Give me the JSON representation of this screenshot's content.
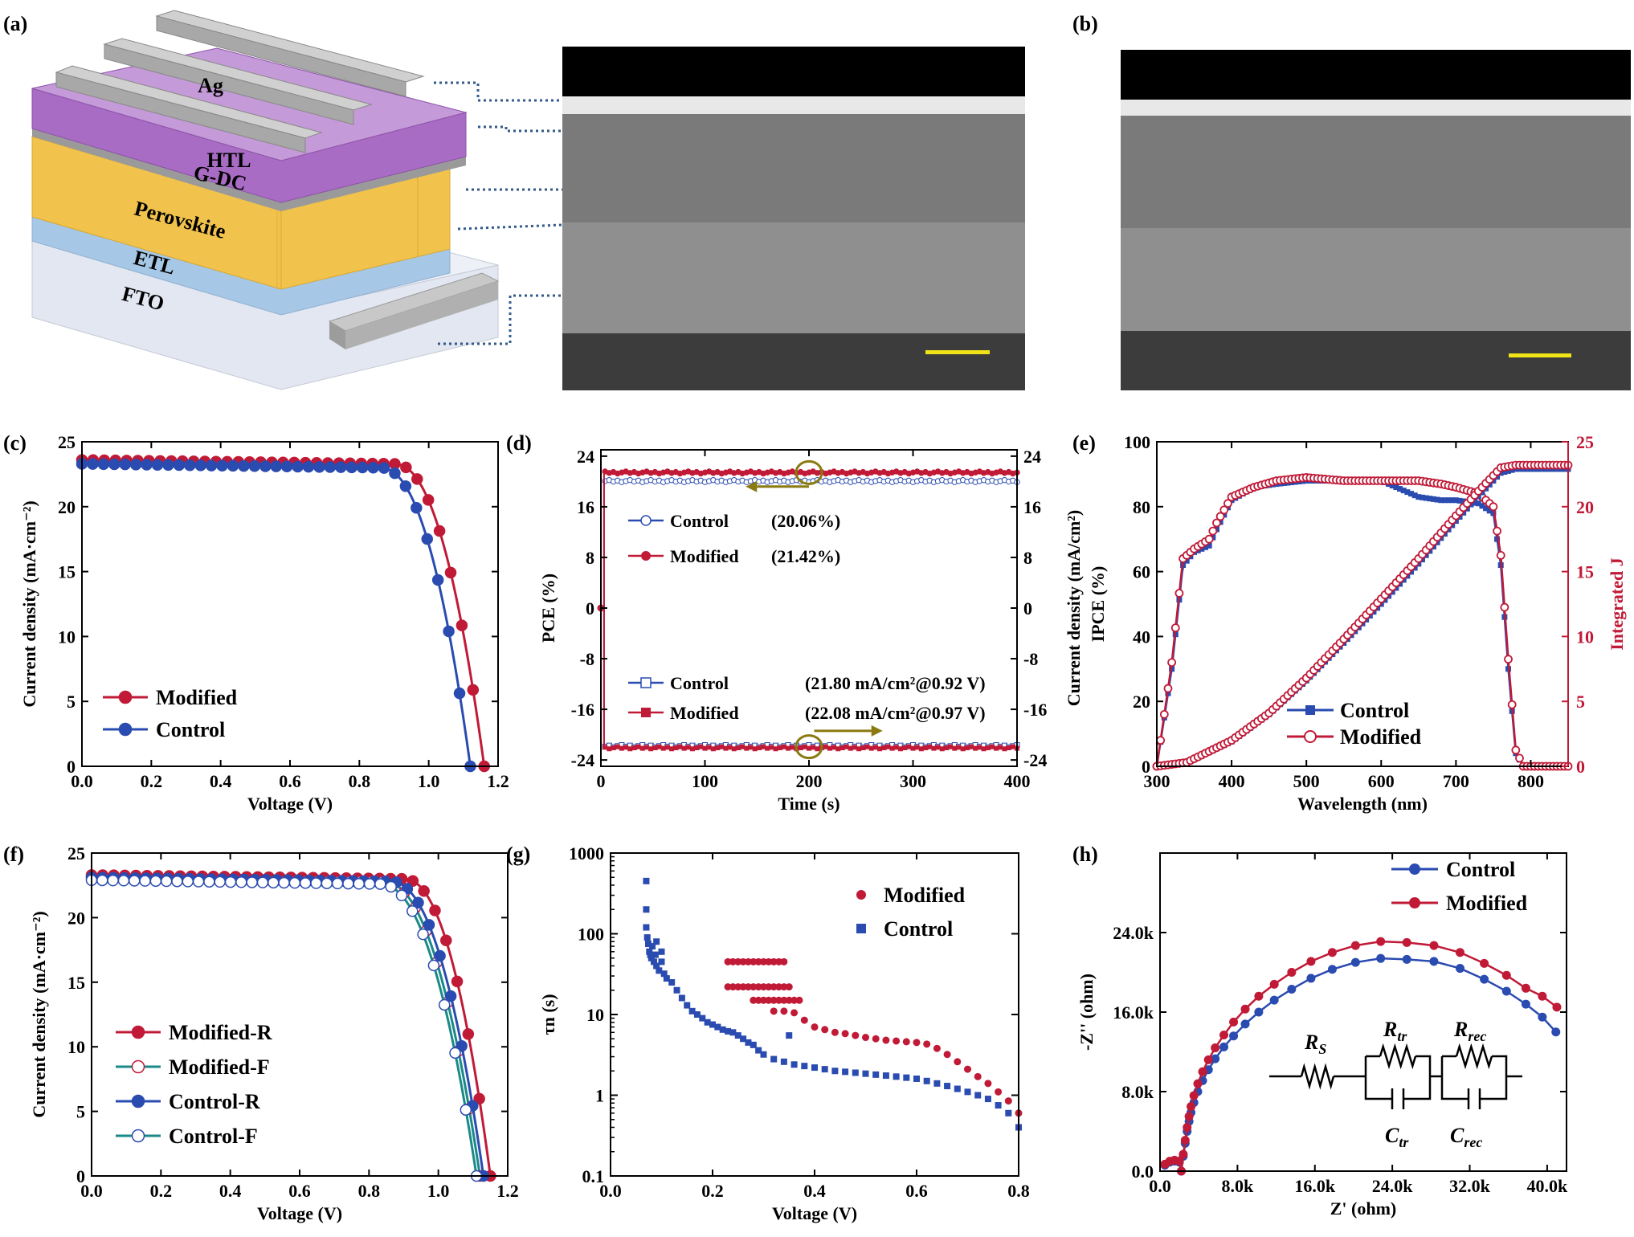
{
  "colors": {
    "control": "#2a4bb0",
    "modified": "#c01a37",
    "teal": "#1a8a88",
    "gold": "#8a7a10",
    "scalebar": "#f0e418",
    "layers": {
      "ag": "#a9a9a9",
      "htl": "#a96cc4",
      "gdc": "#9a9a9a",
      "perovskite": "#f2c34c",
      "etl": "#a6c8e6",
      "fto": "#e6e9f2"
    }
  },
  "panels": {
    "a": {
      "label": "(a)",
      "layers": [
        "Ag",
        "HTL",
        "G-DC",
        "Perovskite",
        "ETL",
        "FTO"
      ]
    },
    "b": {
      "label": "(b)"
    },
    "c": {
      "label": "(c)"
    },
    "d": {
      "label": "(d)"
    },
    "e": {
      "label": "(e)"
    },
    "f": {
      "label": "(f)"
    },
    "g": {
      "label": "(g)"
    },
    "h": {
      "label": "(h)",
      "circuit": {
        "rs": "R",
        "rs_sub": "S",
        "rtr": "R",
        "rtr_sub": "tr",
        "rrec": "R",
        "rrec_sub": "rec",
        "ctr": "C",
        "ctr_sub": "tr",
        "crec": "C",
        "crec_sub": "rec"
      }
    }
  },
  "chart_data": [
    {
      "id": "c",
      "type": "line",
      "xlabel": "Voltage (V)",
      "ylabel": "Current density (mA·cm⁻²)",
      "xlim": [
        0,
        1.2
      ],
      "ylim": [
        0,
        25
      ],
      "xticks": [
        0.0,
        0.2,
        0.4,
        0.6,
        0.8,
        1.0,
        1.2
      ],
      "yticks": [
        0,
        5,
        10,
        15,
        20,
        25
      ],
      "xticklabels": [
        "0.0",
        "0.2",
        "0.4",
        "0.6",
        "0.8",
        "1.0",
        "1.2"
      ],
      "yticklabels": [
        "0",
        "5",
        "10",
        "15",
        "20",
        "25"
      ],
      "legend": [
        {
          "name": "Modified",
          "color": "#c01a37"
        },
        {
          "name": "Control",
          "color": "#2a4bb0"
        }
      ],
      "series": [
        {
          "name": "Modified",
          "color": "#c01a37",
          "jsc": 23.6,
          "voc": 1.16,
          "vk": 0.9,
          "n": 36
        },
        {
          "name": "Control",
          "color": "#2a4bb0",
          "jsc": 23.3,
          "voc": 1.12,
          "vk": 0.86,
          "n": 36
        }
      ]
    },
    {
      "id": "d",
      "type": "line",
      "xlabel": "Time (s)",
      "ylabel": "PCE (%)",
      "y2label": "Current density (mA/cm²)",
      "xlim": [
        0,
        400
      ],
      "ylim": [
        -25,
        25
      ],
      "xticks": [
        0,
        100,
        200,
        300,
        400
      ],
      "yticks": [
        -24,
        -16,
        -8,
        0,
        8,
        16,
        24
      ],
      "xticklabels": [
        "0",
        "100",
        "200",
        "300",
        "400"
      ],
      "yticklabels": [
        "-24",
        "-16",
        "-8",
        "0",
        "8",
        "16",
        "24"
      ],
      "legend": [
        {
          "name": "Control",
          "value": "(20.06%)",
          "color": "#2a4bb0",
          "marker": "circle-open"
        },
        {
          "name": "Modified",
          "value": "(21.42%)",
          "color": "#c01a37",
          "marker": "circle"
        },
        {
          "name": "Control",
          "value": "(21.80 mA/cm²@0.92 V)",
          "color": "#2a4bb0",
          "marker": "square-open"
        },
        {
          "name": "Modified",
          "value": "(22.08 mA/cm²@0.97 V)",
          "color": "#c01a37",
          "marker": "square"
        }
      ],
      "series": [
        {
          "name": "Control PCE",
          "color": "#2a4bb0",
          "level": 20.06
        },
        {
          "name": "Modified PCE",
          "color": "#c01a37",
          "level": 21.42
        },
        {
          "name": "Control J",
          "color": "#2a4bb0",
          "level": -21.8
        },
        {
          "name": "Modified J",
          "color": "#c01a37",
          "level": -22.08
        }
      ]
    },
    {
      "id": "e",
      "type": "line",
      "xlabel": "Wavelength (nm)",
      "ylabel": "IPCE (%)",
      "y2label": "Integrated J",
      "xlim": [
        300,
        850
      ],
      "ylim": [
        0,
        100
      ],
      "y2lim": [
        0,
        25
      ],
      "xticks": [
        300,
        400,
        500,
        600,
        700,
        800
      ],
      "yticks": [
        0,
        20,
        40,
        60,
        80,
        100
      ],
      "y2ticks": [
        0,
        5,
        10,
        15,
        20,
        25
      ],
      "xticklabels": [
        "300",
        "400",
        "500",
        "600",
        "700",
        "800"
      ],
      "yticklabels": [
        "0",
        "20",
        "40",
        "60",
        "80",
        "100"
      ],
      "y2ticklabels": [
        "0",
        "5",
        "10",
        "15",
        "20",
        "25"
      ],
      "legend": [
        {
          "name": "Control",
          "color": "#2a4bb0"
        },
        {
          "name": "Modified",
          "color": "#c01a37"
        }
      ],
      "ipce": {
        "wavelength": [
          300,
          320,
          335,
          350,
          370,
          380,
          400,
          430,
          460,
          500,
          550,
          600,
          650,
          680,
          700,
          730,
          750,
          760,
          770,
          780,
          790,
          850
        ],
        "control": [
          0,
          30,
          62,
          66,
          68,
          73,
          82,
          86,
          87,
          88,
          88,
          88,
          83,
          82,
          82,
          81,
          78,
          62,
          30,
          4,
          0,
          0
        ],
        "modified": [
          0,
          32,
          64,
          67,
          70,
          75,
          83,
          86,
          88,
          89,
          88,
          88,
          88,
          87,
          86,
          84,
          80,
          65,
          33,
          5,
          0,
          0
        ]
      },
      "jsc": {
        "wavelength": [
          300,
          340,
          400,
          450,
          500,
          550,
          600,
          650,
          700,
          730,
          760,
          780,
          850
        ],
        "control": [
          0,
          0.3,
          1.9,
          4.0,
          6.6,
          9.5,
          12.5,
          15.6,
          18.9,
          20.8,
          22.6,
          22.9,
          22.9
        ],
        "modified": [
          0,
          0.3,
          2.0,
          4.1,
          6.8,
          9.8,
          12.9,
          16.0,
          19.3,
          21.2,
          23.0,
          23.2,
          23.2
        ]
      }
    },
    {
      "id": "f",
      "type": "line",
      "xlabel": "Voltage (V)",
      "ylabel": "Current density (mA·cm⁻²)",
      "xlim": [
        0,
        1.2
      ],
      "ylim": [
        0,
        25
      ],
      "xticks": [
        0.0,
        0.2,
        0.4,
        0.6,
        0.8,
        1.0,
        1.2
      ],
      "yticks": [
        0,
        5,
        10,
        15,
        20,
        25
      ],
      "xticklabels": [
        "0.0",
        "0.2",
        "0.4",
        "0.6",
        "0.8",
        "1.0",
        "1.2"
      ],
      "yticklabels": [
        "0",
        "5",
        "10",
        "15",
        "20",
        "25"
      ],
      "legend": [
        {
          "name": "Modified-R",
          "color": "#c01a37",
          "fill": "#c01a37"
        },
        {
          "name": "Modified-F",
          "color": "#1a8a88",
          "fill": "#ffffff",
          "mcolor": "#c01a37"
        },
        {
          "name": "Control-R",
          "color": "#2a4bb0",
          "fill": "#2a4bb0"
        },
        {
          "name": "Control-F",
          "color": "#1a8a88",
          "fill": "#ffffff",
          "mcolor": "#2a4bb0"
        }
      ],
      "series": [
        {
          "name": "Modified-R",
          "color": "#c01a37",
          "mfill": "#c01a37",
          "mstroke": "#c01a37",
          "jsc": 23.3,
          "voc": 1.15,
          "vk": 0.9,
          "n": 36
        },
        {
          "name": "Modified-F",
          "color": "#1a8a88",
          "mfill": "#ffffff",
          "mstroke": "#c01a37",
          "jsc": 23.1,
          "voc": 1.12,
          "vk": 0.84,
          "n": 36
        },
        {
          "name": "Control-R",
          "color": "#2a4bb0",
          "mfill": "#2a4bb0",
          "mstroke": "#2a4bb0",
          "jsc": 23.1,
          "voc": 1.13,
          "vk": 0.86,
          "n": 36
        },
        {
          "name": "Control-F",
          "color": "#1a8a88",
          "mfill": "#ffffff",
          "mstroke": "#2a4bb0",
          "jsc": 22.9,
          "voc": 1.11,
          "vk": 0.83,
          "n": 36
        }
      ]
    },
    {
      "id": "g",
      "type": "scatter",
      "xlabel": "Voltage (V)",
      "ylabel": "τn (s)",
      "xlim": [
        0,
        0.8
      ],
      "ylim": [
        0.1,
        1000
      ],
      "yscale": "log",
      "xticks": [
        0.0,
        0.2,
        0.4,
        0.6,
        0.8
      ],
      "yticks": [
        0.1,
        1,
        10,
        100,
        1000
      ],
      "xticklabels": [
        "0.0",
        "0.2",
        "0.4",
        "0.6",
        "0.8"
      ],
      "yticklabels": [
        "0.1",
        "1",
        "10",
        "100",
        "1000"
      ],
      "legend": [
        {
          "name": "Modified",
          "color": "#c01a37",
          "marker": "circle"
        },
        {
          "name": "Control",
          "color": "#2a4bb0",
          "marker": "square"
        }
      ],
      "series": [
        {
          "name": "Modified",
          "color": "#c01a37",
          "marker": "circle",
          "x": [
            0.23,
            0.24,
            0.25,
            0.26,
            0.27,
            0.28,
            0.29,
            0.3,
            0.31,
            0.32,
            0.33,
            0.34,
            0.23,
            0.24,
            0.25,
            0.26,
            0.27,
            0.28,
            0.29,
            0.3,
            0.31,
            0.32,
            0.33,
            0.34,
            0.35,
            0.28,
            0.29,
            0.3,
            0.31,
            0.32,
            0.33,
            0.34,
            0.35,
            0.36,
            0.37,
            0.32,
            0.34,
            0.36,
            0.38,
            0.4,
            0.42,
            0.44,
            0.46,
            0.48,
            0.5,
            0.52,
            0.54,
            0.56,
            0.58,
            0.6,
            0.62,
            0.64,
            0.66,
            0.68,
            0.7,
            0.72,
            0.74,
            0.76,
            0.78,
            0.8
          ],
          "y": [
            45,
            45,
            45,
            45,
            45,
            45,
            45,
            45,
            45,
            45,
            45,
            45,
            22,
            22,
            22,
            22,
            22,
            22,
            22,
            22,
            22,
            22,
            22,
            22,
            22,
            15,
            15,
            15,
            15,
            15,
            15,
            15,
            15,
            15,
            15,
            11,
            11,
            10.5,
            8.5,
            7,
            6.5,
            6,
            5.8,
            5.5,
            5.2,
            5,
            4.8,
            4.7,
            4.6,
            4.5,
            4.3,
            3.8,
            3.2,
            2.6,
            2.1,
            1.7,
            1.4,
            1.1,
            0.85,
            0.6
          ]
        },
        {
          "name": "Control",
          "color": "#2a4bb0",
          "marker": "square",
          "x": [
            0.07,
            0.07,
            0.07,
            0.072,
            0.074,
            0.076,
            0.078,
            0.08,
            0.082,
            0.085,
            0.088,
            0.09,
            0.095,
            0.1,
            0.105,
            0.11,
            0.12,
            0.13,
            0.14,
            0.15,
            0.16,
            0.17,
            0.18,
            0.19,
            0.2,
            0.21,
            0.22,
            0.23,
            0.24,
            0.25,
            0.26,
            0.27,
            0.28,
            0.29,
            0.3,
            0.32,
            0.34,
            0.36,
            0.38,
            0.4,
            0.42,
            0.44,
            0.46,
            0.48,
            0.5,
            0.52,
            0.54,
            0.56,
            0.58,
            0.6,
            0.62,
            0.64,
            0.66,
            0.68,
            0.7,
            0.72,
            0.74,
            0.76,
            0.78,
            0.8,
            0.35,
            0.09,
            0.1
          ],
          "y": [
            450,
            200,
            120,
            90,
            75,
            60,
            55,
            50,
            70,
            45,
            55,
            40,
            35,
            45,
            32,
            28,
            25,
            20,
            16,
            13,
            11,
            10,
            9,
            8,
            7.5,
            7,
            6.5,
            6.2,
            6,
            5.5,
            5,
            4.5,
            4.2,
            3.6,
            3.2,
            2.8,
            2.6,
            2.4,
            2.3,
            2.2,
            2.1,
            2,
            1.95,
            1.9,
            1.85,
            1.8,
            1.75,
            1.7,
            1.65,
            1.6,
            1.5,
            1.4,
            1.3,
            1.2,
            1.1,
            1,
            0.9,
            0.75,
            0.6,
            0.4,
            5.5,
            80,
            60
          ]
        }
      ]
    },
    {
      "id": "h",
      "type": "line",
      "xlabel": "Z' (ohm)",
      "ylabel": "-Z'' (ohm)",
      "xlim": [
        0,
        42000
      ],
      "ylim": [
        0,
        32000
      ],
      "xticks": [
        0,
        8000,
        16000,
        24000,
        32000,
        40000
      ],
      "yticks": [
        0,
        8000,
        16000,
        24000
      ],
      "xticklabels": [
        "0.0",
        "8.0k",
        "16.0k",
        "24.0k",
        "32.0k",
        "40.0k"
      ],
      "yticklabels": [
        "0.0",
        "8.0k",
        "16.0k",
        "24.0k"
      ],
      "legend": [
        {
          "name": "Control",
          "color": "#2a4bb0"
        },
        {
          "name": "Modified",
          "color": "#c01a37"
        }
      ],
      "series": [
        {
          "name": "Control",
          "color": "#2a4bb0",
          "x": [
            500,
            1000,
            1500,
            2000,
            2200,
            2400,
            2600,
            2800,
            3000,
            3200,
            3500,
            3900,
            4400,
            5000,
            5700,
            6600,
            7600,
            8800,
            10200,
            11800,
            13600,
            15600,
            17800,
            20200,
            22800,
            25500,
            28300,
            31000,
            33500,
            35800,
            37800,
            39500,
            40900
          ],
          "y": [
            600,
            900,
            1000,
            900,
            0,
            1500,
            2800,
            4000,
            5000,
            5900,
            6900,
            8000,
            9100,
            10200,
            11300,
            12500,
            13600,
            14800,
            16000,
            17200,
            18300,
            19400,
            20300,
            21000,
            21400,
            21300,
            21100,
            20400,
            19300,
            18100,
            16800,
            15500,
            14000
          ]
        },
        {
          "name": "Modified",
          "color": "#c01a37",
          "x": [
            500,
            1000,
            1500,
            2000,
            2200,
            2400,
            2600,
            2800,
            3000,
            3200,
            3500,
            3900,
            4400,
            5000,
            5700,
            6600,
            7600,
            8800,
            10200,
            11800,
            13600,
            15600,
            17800,
            20200,
            22800,
            25500,
            28300,
            31000,
            33500,
            35800,
            37800,
            39500,
            41000
          ],
          "y": [
            700,
            1000,
            1100,
            1000,
            0,
            1700,
            3100,
            4400,
            5500,
            6500,
            7600,
            8800,
            10000,
            11200,
            12400,
            13700,
            15000,
            16300,
            17600,
            18800,
            20000,
            21100,
            22000,
            22700,
            23100,
            23000,
            22700,
            22000,
            20900,
            19700,
            18400,
            17600,
            16500
          ]
        }
      ]
    }
  ]
}
